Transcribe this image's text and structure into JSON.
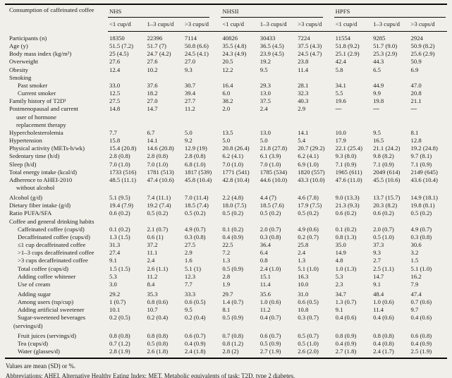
{
  "table": {
    "title_cell": "Consumption of caffeinated coffee",
    "groups": [
      {
        "name": "NHS"
      },
      {
        "name": "NHSII"
      },
      {
        "name": "HPFS"
      }
    ],
    "col_headers": [
      "<1 cup/d",
      "1–3 cups/d",
      ">3 cups/d",
      "<1 cup/d",
      "1–3 cups/d",
      ">3 cups/d",
      "<1 cup/d",
      "1–3 cups/d",
      ">3 cups/d"
    ],
    "rows": [
      {
        "label": "Participants (n)",
        "indent": 0,
        "values": [
          "18350",
          "22396",
          "7114",
          "40826",
          "30433",
          "7224",
          "11554",
          "9285",
          "2924"
        ]
      },
      {
        "label": "Age (y)",
        "indent": 0,
        "values": [
          "51.5 (7.2)",
          "51.7 (7)",
          "50.8 (6.6)",
          "35.5 (4.8)",
          "36.5 (4.5)",
          "37.5 (4.3)",
          "51.8 (9.2)",
          "51.7 (9.0)",
          "50.9 (8.2)"
        ]
      },
      {
        "label": "Body mass index (kg/m²)",
        "indent": 0,
        "values": [
          "25 (4.5)",
          "24.7 (4.2)",
          "24.5 (4.1)",
          "24.3 (4.9)",
          "23.9 (4.5)",
          "24.5 (4.7)",
          "25.1 (2.9)",
          "25.3 (2.9)",
          "25.6 (2.9)"
        ]
      },
      {
        "label": "Overweight",
        "indent": 0,
        "values": [
          "27.6",
          "27.6",
          "27.0",
          "20.5",
          "19.2",
          "23.8",
          "42.4",
          "44.3",
          "50.9"
        ]
      },
      {
        "label": "Obesity",
        "indent": 0,
        "values": [
          "12.4",
          "10.2",
          "9.3",
          "12.2",
          "9.5",
          "11.4",
          "5.8",
          "6.5",
          "6.9"
        ]
      },
      {
        "label": "Smoking",
        "indent": 0,
        "section": true,
        "values": null
      },
      {
        "label": "Past smoker",
        "indent": 1,
        "values": [
          "33.0",
          "37.6",
          "30.7",
          "16.4",
          "29.3",
          "28.1",
          "34.1",
          "44.9",
          "47.0"
        ]
      },
      {
        "label": "Current smoker",
        "indent": 1,
        "values": [
          "12.5",
          "18.2",
          "39.4",
          "6.0",
          "13.0",
          "32.3",
          "5.5",
          "9.9",
          "20.8"
        ]
      },
      {
        "label": "Family history of T2D¹",
        "indent": 0,
        "values": [
          "27.5",
          "27.0",
          "27.7",
          "38.2",
          "37.5",
          "40.3",
          "19.6",
          "19.8",
          "21.1"
        ]
      },
      {
        "label": "Postmenopausal and current\nuser of hormone\nreplacement therapy",
        "indent": 0,
        "values": [
          "14.8",
          "14.7",
          "11.2",
          "2.0",
          "2.4",
          "2.9",
          "—",
          "—",
          "—"
        ]
      },
      {
        "label": "Hypercholesterolemia",
        "indent": 0,
        "values": [
          "7.7",
          "6.7",
          "5.0",
          "13.5",
          "13.0",
          "14.1",
          "10.0",
          "9.5",
          "8.1"
        ]
      },
      {
        "label": "Hypertension",
        "indent": 0,
        "values": [
          "15.8",
          "14.1",
          "9.2",
          "5.0",
          "5.0",
          "5.4",
          "17.9",
          "16.5",
          "12.8"
        ]
      },
      {
        "label": "Physical activity (METs-h/wk)",
        "indent": 0,
        "values": [
          "15.4 (20.8)",
          "14.6 (20.8)",
          "12.9 (19)",
          "20.8 (26.4)",
          "21.8 (27.8)",
          "20.7 (29.2)",
          "22.1 (25.4)",
          "21.1 (24.2)",
          "19.2 (24.8)"
        ]
      },
      {
        "label": "Sedentary time (h/d)",
        "indent": 0,
        "values": [
          "2.8 (0.8)",
          "2.8 (0.8)",
          "2.8 (0.8)",
          "6.2 (4.1)",
          "6.1 (3.9)",
          "6.2 (4.1)",
          "9.3 (8.0)",
          "9.8 (8.2)",
          "9.7 (8.1)"
        ]
      },
      {
        "label": "Sleep (h/d)",
        "indent": 0,
        "values": [
          "7.0 (1.0)",
          "7.0 (1.0)",
          "6.8 (1.0)",
          "7.0 (1.0)",
          "7.0 (1.0)",
          "6.9 (1.0)",
          "7.1 (0.9)",
          "7.1 (0.9)",
          "7.1 (0.9)"
        ]
      },
      {
        "label": "Total energy intake (kcal/d)",
        "indent": 0,
        "values": [
          "1733 (516)",
          "1781 (513)",
          "1817 (539)",
          "1771 (541)",
          "1785 (534)",
          "1820 (557)",
          "1965 (611)",
          "2049 (614)",
          "2149 (645)"
        ]
      },
      {
        "label": "Adherence to AHEI-2010\nwithout alcohol",
        "indent": 0,
        "values": [
          "48.5 (11.1)",
          "47.4 (10.6)",
          "45.8 (10.4)",
          "42.8 (10.4)",
          "44.6 (10.0)",
          "43.3 (10.0)",
          "47.6 (11.0)",
          "45.5 (10.6)",
          "43.6 (10.4)"
        ]
      },
      {
        "label": "Alcohol (g/d)",
        "indent": 0,
        "gap": true,
        "values": [
          "5.1 (9.5)",
          "7.4 (11.1)",
          "7.0 (11.4)",
          "2.2 (4.8)",
          "4.4 (7)",
          "4.6 (7.8)",
          "9.0 (13.3)",
          "13.7 (15.7)",
          "14.9 (18.1)"
        ]
      },
      {
        "label": "Dietary fiber intake (g/d)",
        "indent": 0,
        "values": [
          "19.4 (7.9)",
          "19.2 (7.4)",
          "18.5 (7.4)",
          "18.0 (7.5)",
          "18.5 (7.6)",
          "17.9 (7.5)",
          "21.3 (9.3)",
          "20.3 (8.2)",
          "19.8 (8.1)"
        ]
      },
      {
        "label": "Ratio PUFA/SFA",
        "indent": 0,
        "values": [
          "0.6 (0.2)",
          "0.5 (0.2)",
          "0.5 (0.2)",
          "0.5 (0.2)",
          "0.5 (0.2)",
          "0.5 (0.2)",
          "0.6 (0.2)",
          "0.6 (0.2)",
          "0.5 (0.2)"
        ]
      },
      {
        "label": "Coffee and general drinking habits",
        "indent": 0,
        "section": true,
        "values": null
      },
      {
        "label": "Caffeinated coffee (cups/d)",
        "indent": 1,
        "values": [
          "0.1 (0.2)",
          "2.1 (0.7)",
          "4.9 (0.7)",
          "0.1 (0.2)",
          "2.0 (0.7)",
          "4.9 (0.6)",
          "0.1 (0.2)",
          "2.0 (0.7)",
          "4.9 (0.7)"
        ]
      },
      {
        "label": "Decaffeinated coffee (cups/d)",
        "indent": 1,
        "values": [
          "1.3 (1.5)",
          "0.6 (1)",
          "0.3 (0.8)",
          "0.4 (0.9)",
          "0.3 (0.8)",
          "0.2 (0.7)",
          "0.8 (1.3)",
          "0.5 (1.0)",
          "0.3 (0.8)"
        ]
      },
      {
        "label": "≤1 cup decaffeinated coffee",
        "indent": 1,
        "values": [
          "31.3",
          "37.2",
          "27.5",
          "22.5",
          "36.4",
          "25.8",
          "35.0",
          "37.3",
          "30.6"
        ]
      },
      {
        "label": ">1–3 cups decaffeinated coffee",
        "indent": 1,
        "values": [
          "27.4",
          "11.1",
          "2.9",
          "7.2",
          "6.4",
          "2.4",
          "14.9",
          "9.3",
          "3.2"
        ]
      },
      {
        "label": ">3 cups decaffeinated coffee",
        "indent": 1,
        "values": [
          "9.1",
          "2.4",
          "1.6",
          "1.3",
          "0.8",
          "1.3",
          "4.8",
          "2.7",
          "1.5"
        ]
      },
      {
        "label": "Total coffee (cups/d)",
        "indent": 1,
        "values": [
          "1.5 (1.5)",
          "2.6 (1.1)",
          "5.1 (1)",
          "0.5 (0.9)",
          "2.4 (1.0)",
          "5.1 (1.0)",
          "1.0 (1.3)",
          "2.5 (1.1)",
          "5.1 (1.0)"
        ]
      },
      {
        "label": "Adding coffee whitener",
        "indent": 1,
        "values": [
          "5.3",
          "11.2",
          "12.3",
          "2.8",
          "15.1",
          "16.3",
          "5.3",
          "14.7",
          "16.2"
        ]
      },
      {
        "label": "Use of cream",
        "indent": 1,
        "values": [
          "3.0",
          "8.4",
          "7.7",
          "1.9",
          "11.4",
          "10.0",
          "2.3",
          "9.1",
          "7.9"
        ]
      },
      {
        "label": "Adding sugar",
        "indent": 1,
        "gap": true,
        "values": [
          "29.2",
          "35.3",
          "33.3",
          "29.7",
          "35.6",
          "31.0",
          "34.7",
          "48.4",
          "47.4"
        ]
      },
      {
        "label": "Among users (tsp/cup)",
        "indent": 1,
        "values": [
          "1 (0.7)",
          "0.8 (0.6)",
          "0.6 (0.5)",
          "1.4 (0.7)",
          "1.0 (0.6)",
          "0.6 (0.5)",
          "1.3 (0.7)",
          "1.0 (0.6)",
          "0.7 (0.6)"
        ]
      },
      {
        "label": "Adding artificial sweetener",
        "indent": 1,
        "values": [
          "10.1",
          "10.7",
          "9.5",
          "8.1",
          "11.2",
          "10.8",
          "9.1",
          "11.4",
          "9.7"
        ]
      },
      {
        "label": "Sugar-sweetened beverages\n(servings/d)",
        "indent": 1,
        "values": [
          "0.2 (0.5)",
          "0.2 (0.4)",
          "0.2 (0.4)",
          "0.5 (0.9)",
          "0.4 (0.7)",
          "0.3 (0.7)",
          "0.4 (0.6)",
          "0.4 (0.6)",
          "0.4 (0.6)"
        ]
      },
      {
        "label": "Fruit juices (servings/d)",
        "indent": 1,
        "gap": true,
        "values": [
          "0.8 (0.8)",
          "0.8 (0.8)",
          "0.6 (0.7)",
          "0.7 (0.8)",
          "0.6 (0.7)",
          "0.5 (0.7)",
          "0.8 (0.9)",
          "0.8 (0.8)",
          "0.6 (0.8)"
        ]
      },
      {
        "label": "Tea (cups/d)",
        "indent": 1,
        "values": [
          "0.7 (1.2)",
          "0.5 (0.8)",
          "0.4 (0.9)",
          "0.8 (1.2)",
          "0.5 (0.9)",
          "0.5 (1.0)",
          "0.4 (0.9)",
          "0.4 (0.8)",
          "0.4 (0.9)"
        ]
      },
      {
        "label": "Water (glasses/d)",
        "indent": 1,
        "values": [
          "2.8 (1.9)",
          "2.6 (1.8)",
          "2.4 (1.8)",
          "2.8 (2)",
          "2.7 (1.9)",
          "2.6 (2.0)",
          "2.7 (1.8)",
          "2.4 (1.7)",
          "2.5 (1.9)"
        ]
      }
    ],
    "footnotes": [
      "Values are mean (SD) or %.",
      "Abbreviations: AHEI, Alternative Healthy Eating Index; MET, Metabolic equivalents of task; T2D, type 2 diabetes."
    ]
  }
}
